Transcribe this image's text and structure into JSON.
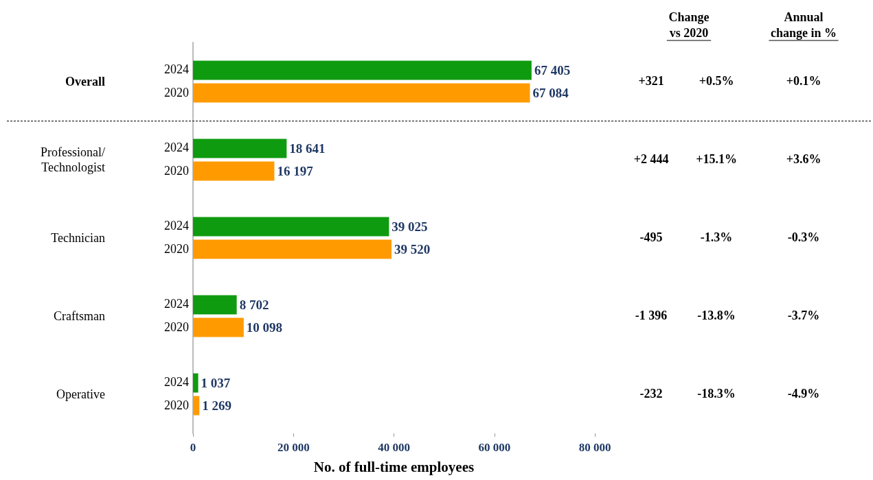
{
  "chart_data": {
    "type": "bar",
    "orientation": "horizontal",
    "xlabel": "No. of full-time employees",
    "categories": [
      "Overall",
      "Professional/\nTechnologist",
      "Technician",
      "Craftsman",
      "Operative"
    ],
    "series": [
      {
        "name": "2024",
        "color": "#0f9b0f",
        "values": [
          67405,
          18641,
          39025,
          8702,
          1037
        ],
        "value_labels": [
          "67 405",
          "18 641",
          "39 025",
          "8 702",
          "1 037"
        ]
      },
      {
        "name": "2020",
        "color": "#ff9b00",
        "values": [
          67084,
          16197,
          39520,
          10098,
          1269
        ],
        "value_labels": [
          "67 084",
          "16 197",
          "39 520",
          "10 098",
          "1 269"
        ]
      }
    ],
    "xlim": [
      0,
      80000
    ],
    "xticks": [
      0,
      {
        "value": 20000,
        "label": "20 000"
      },
      {
        "value": 40000,
        "label": "40 000"
      },
      {
        "value": 60000,
        "label": "60 000"
      },
      {
        "value": 80000,
        "label": "80 000"
      }
    ],
    "grid": false,
    "legend": false,
    "annotations": [
      "Change\nvs 2020",
      "Annual\nchange in %",
      "+321",
      "+0.5%",
      "+0.1%",
      "+2 444",
      "+15.1%",
      "+3.6%",
      "-495",
      "-1.3%",
      "-0.3%",
      "-1 396",
      "-13.8%",
      "-3.7%",
      "-232",
      "-18.3%",
      "-4.9%"
    ]
  }
}
